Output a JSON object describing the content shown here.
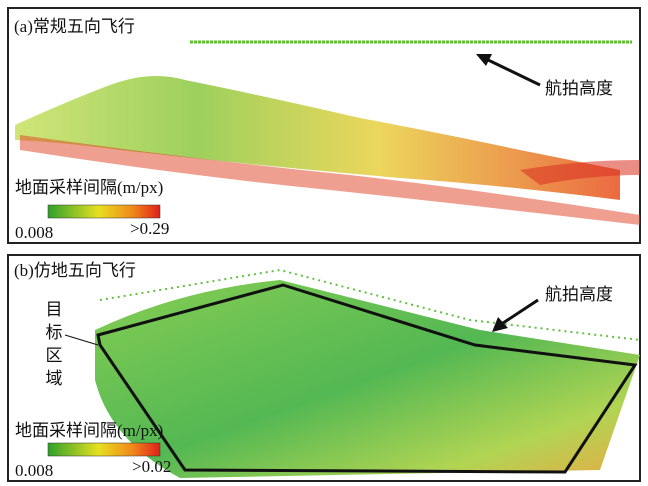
{
  "panel_a": {
    "title": "(a)常规五向飞行",
    "height_label": "航拍高度",
    "legend_title": "地面采样间隔(m/px)",
    "legend_min": "0.008",
    "legend_max": ">0.29"
  },
  "panel_b": {
    "title": "(b)仿地五向飞行",
    "height_label": "航拍高度",
    "region_label": "目标区域",
    "legend_title": "地面采样间隔(m/px)",
    "legend_min": "0.008",
    "legend_max": ">0.02"
  }
}
